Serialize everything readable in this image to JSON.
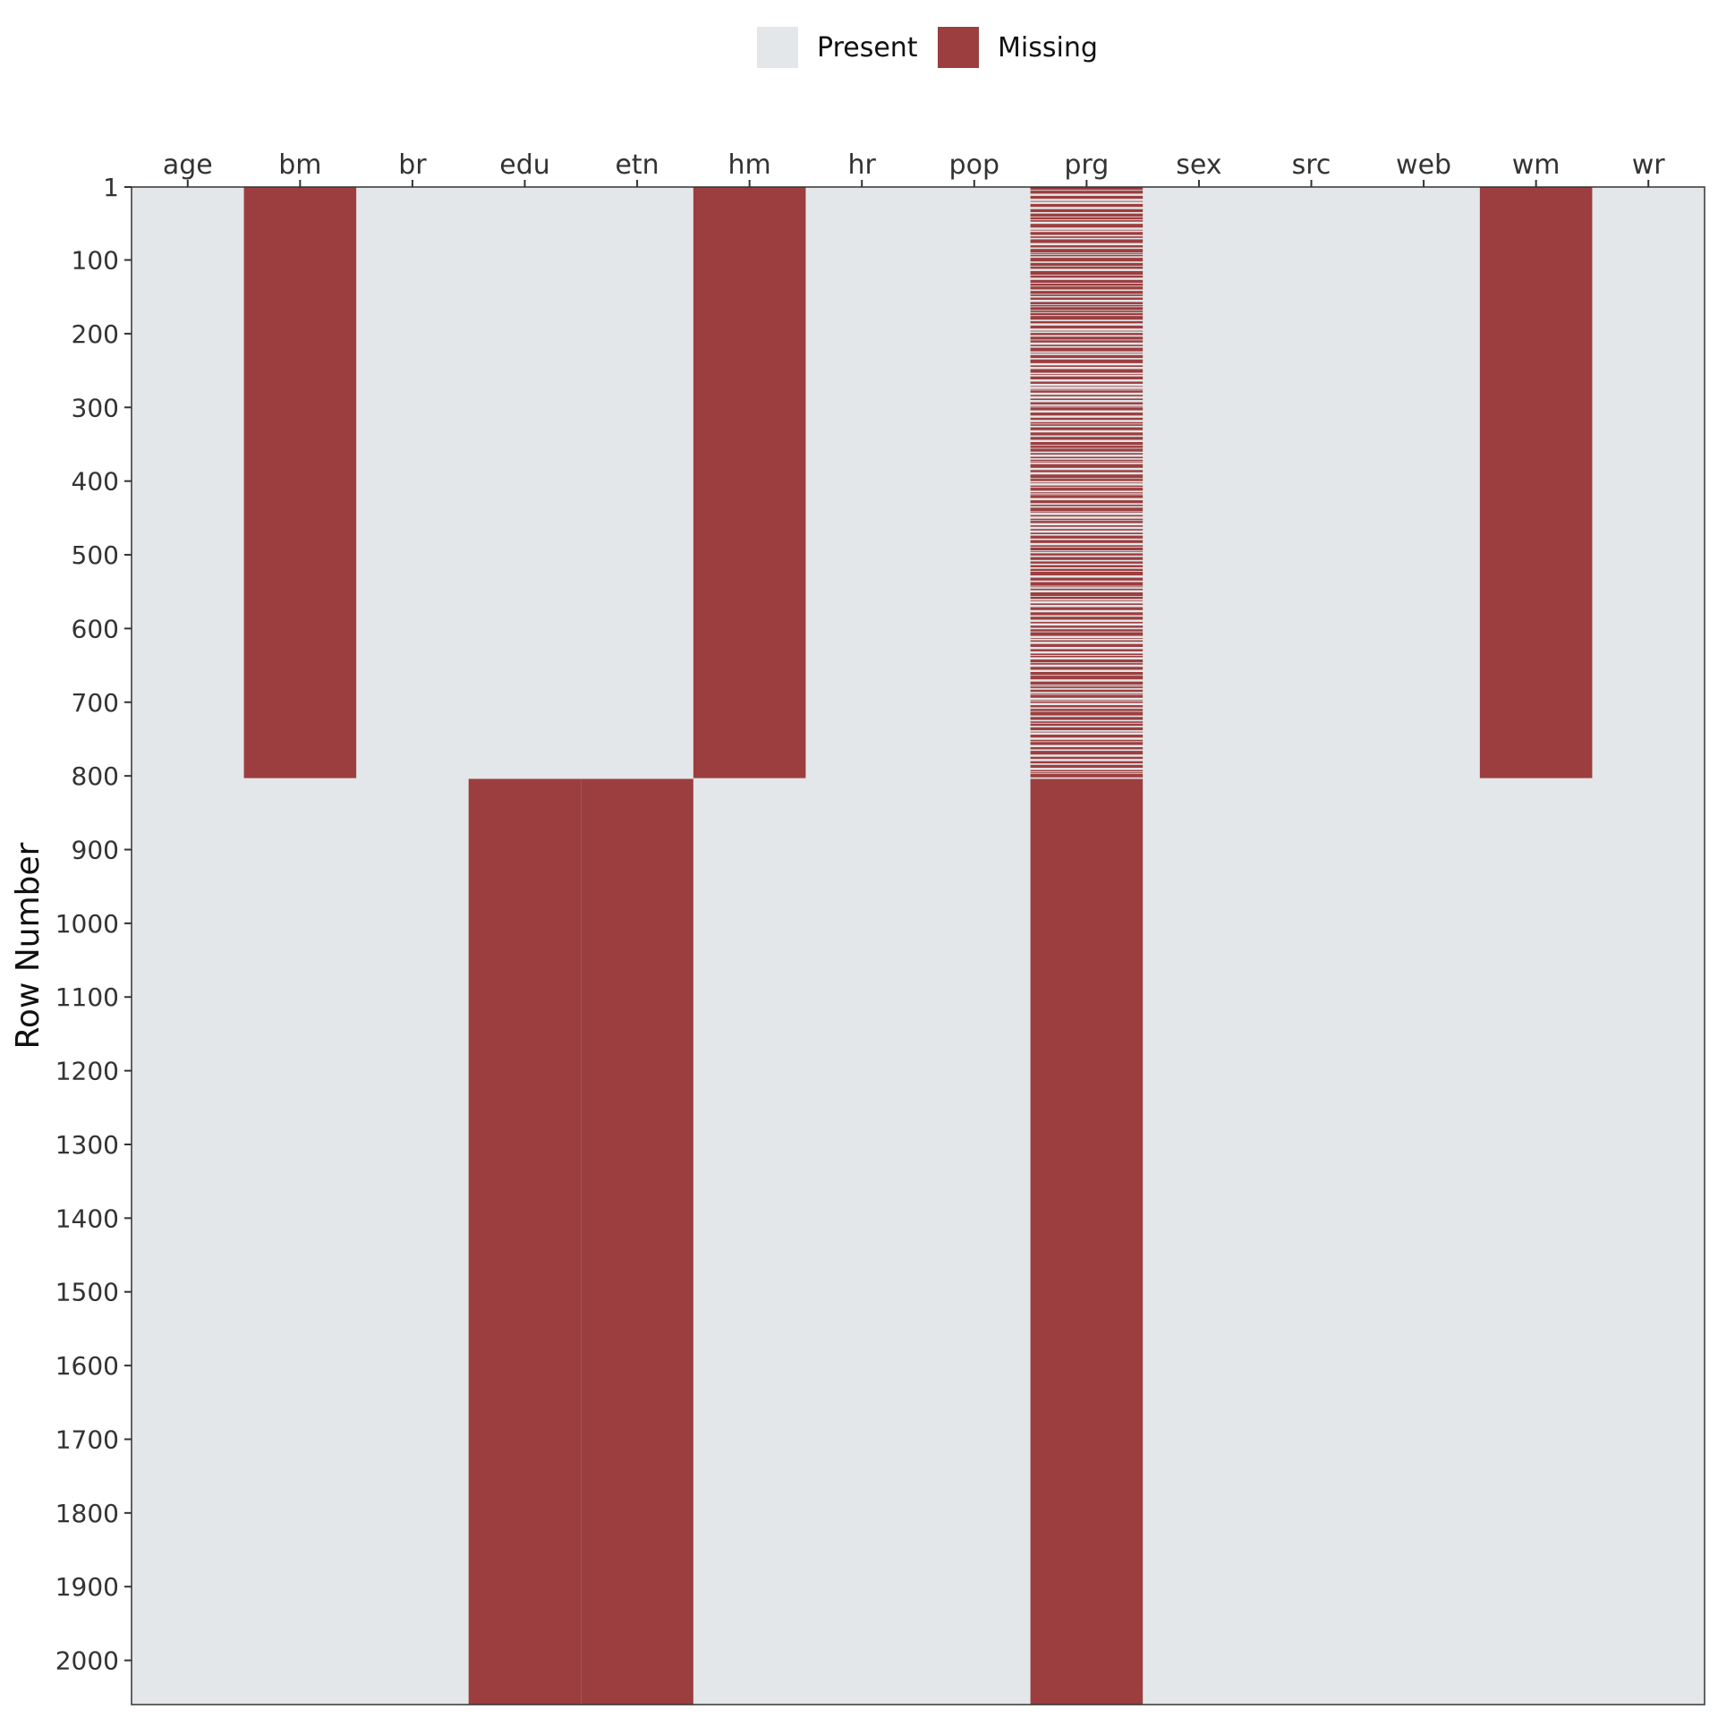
{
  "chart_data": {
    "type": "heatmap",
    "title": "",
    "xlabel": "",
    "ylabel": "Row Number",
    "legend": {
      "placement": "top",
      "entries": [
        {
          "label": "Present",
          "color": "#E4E7E9"
        },
        {
          "label": "Missing",
          "color": "#9C3E3F"
        }
      ]
    },
    "columns": [
      "age",
      "bm",
      "br",
      "edu",
      "etn",
      "hm",
      "hr",
      "pop",
      "prg",
      "sex",
      "src",
      "web",
      "wm",
      "wr"
    ],
    "row_range": [
      1,
      2060
    ],
    "y_ticks": [
      1,
      100,
      200,
      300,
      400,
      500,
      600,
      700,
      800,
      900,
      1000,
      1100,
      1200,
      1300,
      1400,
      1500,
      1600,
      1700,
      1800,
      1900,
      2000
    ],
    "missing_blocks": [
      {
        "column": "bm",
        "from_row": 1,
        "to_row": 803
      },
      {
        "column": "hm",
        "from_row": 1,
        "to_row": 803
      },
      {
        "column": "wm",
        "from_row": 1,
        "to_row": 803
      },
      {
        "column": "edu",
        "from_row": 804,
        "to_row": 2060
      },
      {
        "column": "etn",
        "from_row": 804,
        "to_row": 2060
      },
      {
        "column": "prg",
        "from_row": 804,
        "to_row": 2060
      }
    ],
    "partial_missing": [
      {
        "column": "prg",
        "from_row": 1,
        "to_row": 803,
        "pattern": "intermittent"
      }
    ],
    "colors": {
      "present": "#E4E7E9",
      "missing": "#9C3E3F"
    }
  }
}
